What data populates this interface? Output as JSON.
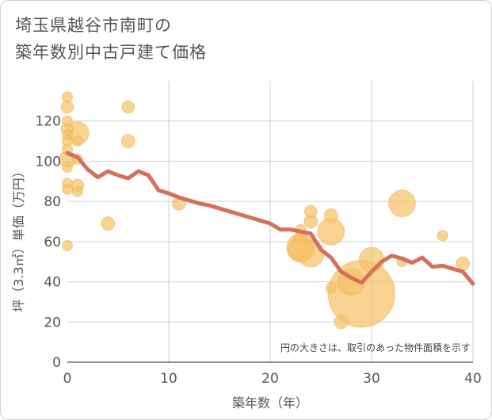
{
  "chart_data": {
    "type": "scatter",
    "title_line1": "埼玉県越谷市南町の",
    "title_line2": "築年数別中古戸建て価格",
    "xlabel": "築年数（年）",
    "ylabel": "坪（3.3㎡）単価（万円）",
    "xlim": [
      0,
      40
    ],
    "ylim": [
      0,
      140
    ],
    "xticks": [
      0,
      10,
      20,
      30,
      40
    ],
    "yticks": [
      0,
      20,
      40,
      60,
      80,
      100,
      120
    ],
    "grid": true,
    "note": "円の大きさは、取引のあった物件面積を示す",
    "bubble_color": "#f5c266",
    "line_color": "#d4705b",
    "scatter": [
      {
        "x": 0,
        "y": 132,
        "size": 1
      },
      {
        "x": 0,
        "y": 127,
        "size": 1.2
      },
      {
        "x": 0,
        "y": 120,
        "size": 1
      },
      {
        "x": 0,
        "y": 116,
        "size": 1.2
      },
      {
        "x": 0,
        "y": 113,
        "size": 1
      },
      {
        "x": 0,
        "y": 110,
        "size": 1
      },
      {
        "x": 0,
        "y": 106,
        "size": 1
      },
      {
        "x": 0,
        "y": 101,
        "size": 1.6
      },
      {
        "x": 0,
        "y": 97,
        "size": 1
      },
      {
        "x": 0,
        "y": 89,
        "size": 1
      },
      {
        "x": 0,
        "y": 86,
        "size": 1
      },
      {
        "x": 0,
        "y": 58,
        "size": 1
      },
      {
        "x": 1,
        "y": 114,
        "size": 2.2
      },
      {
        "x": 1,
        "y": 110,
        "size": 1
      },
      {
        "x": 1,
        "y": 101,
        "size": 1
      },
      {
        "x": 1,
        "y": 88,
        "size": 1.2
      },
      {
        "x": 1,
        "y": 85,
        "size": 1
      },
      {
        "x": 4,
        "y": 69,
        "size": 1.3
      },
      {
        "x": 6,
        "y": 127,
        "size": 1.2
      },
      {
        "x": 6,
        "y": 110,
        "size": 1.3
      },
      {
        "x": 11,
        "y": 79,
        "size": 1.3
      },
      {
        "x": 23,
        "y": 66,
        "size": 1
      },
      {
        "x": 23,
        "y": 62,
        "size": 1.2
      },
      {
        "x": 23,
        "y": 57,
        "size": 2.7
      },
      {
        "x": 23,
        "y": 56,
        "size": 2.4
      },
      {
        "x": 24,
        "y": 75,
        "size": 1.2
      },
      {
        "x": 24,
        "y": 70,
        "size": 1.3
      },
      {
        "x": 24,
        "y": 54,
        "size": 2.6
      },
      {
        "x": 26,
        "y": 73,
        "size": 1.3
      },
      {
        "x": 26,
        "y": 65,
        "size": 2.6
      },
      {
        "x": 26,
        "y": 37,
        "size": 1
      },
      {
        "x": 27,
        "y": 20,
        "size": 1.3
      },
      {
        "x": 28,
        "y": 40,
        "size": 2.6
      },
      {
        "x": 29,
        "y": 34,
        "size": 6.5
      },
      {
        "x": 30,
        "y": 51,
        "size": 2.4
      },
      {
        "x": 33,
        "y": 79,
        "size": 2.6
      },
      {
        "x": 33,
        "y": 50,
        "size": 1
      },
      {
        "x": 37,
        "y": 63,
        "size": 1
      },
      {
        "x": 39,
        "y": 49,
        "size": 1.3
      }
    ],
    "trend_line": {
      "x": [
        0,
        1,
        2,
        3,
        4,
        5,
        6,
        7,
        8,
        9,
        10,
        11,
        12,
        13,
        14,
        15,
        16,
        17,
        18,
        19,
        20,
        21,
        22,
        23,
        24,
        25,
        26,
        27,
        28,
        29,
        30,
        31,
        32,
        33,
        34,
        35,
        36,
        37,
        38,
        39,
        40
      ],
      "y": [
        104,
        102,
        96,
        92,
        95,
        93,
        91.5,
        95,
        93,
        85.5,
        84,
        82,
        80.5,
        79,
        78,
        76.5,
        75,
        73.5,
        72,
        70.5,
        69,
        66,
        66,
        65,
        64,
        56,
        52,
        45,
        42,
        39.5,
        45,
        50,
        53,
        51.5,
        49.5,
        52,
        47.5,
        48,
        46.5,
        45,
        39
      ]
    }
  }
}
